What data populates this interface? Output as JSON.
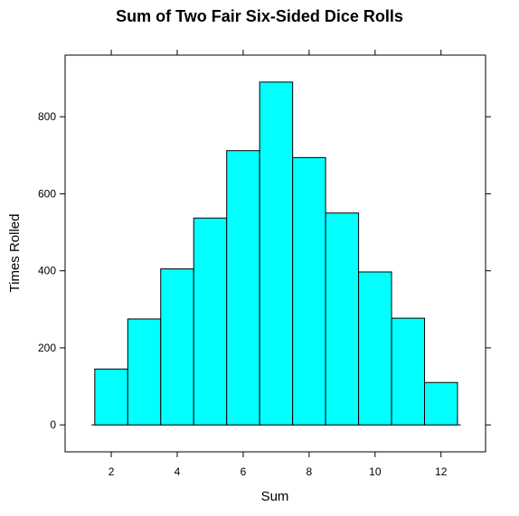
{
  "chart_data": {
    "type": "bar",
    "title": "Sum of Two Fair Six-Sided Dice Rolls",
    "xlabel": "Sum",
    "ylabel": "Times Rolled",
    "categories": [
      "2",
      "3",
      "4",
      "5",
      "6",
      "7",
      "8",
      "9",
      "10",
      "11",
      "12"
    ],
    "x": [
      2,
      3,
      4,
      5,
      6,
      7,
      8,
      9,
      10,
      11,
      12
    ],
    "values": [
      145,
      275,
      405,
      537,
      712,
      890,
      694,
      550,
      397,
      277,
      110
    ],
    "xlim": [
      0.6,
      13.35
    ],
    "ylim": [
      -70,
      960
    ],
    "xticks": [
      2,
      4,
      6,
      8,
      10,
      12
    ],
    "yticks": [
      0,
      200,
      400,
      600,
      800
    ],
    "xtick_labels": [
      "2",
      "4",
      "6",
      "8",
      "10",
      "12"
    ],
    "ytick_labels": [
      "0",
      "200",
      "400",
      "600",
      "800"
    ],
    "grid": false,
    "legend": "none",
    "bar_color": "#00FFFF",
    "bar_edge_color": "#000000"
  }
}
